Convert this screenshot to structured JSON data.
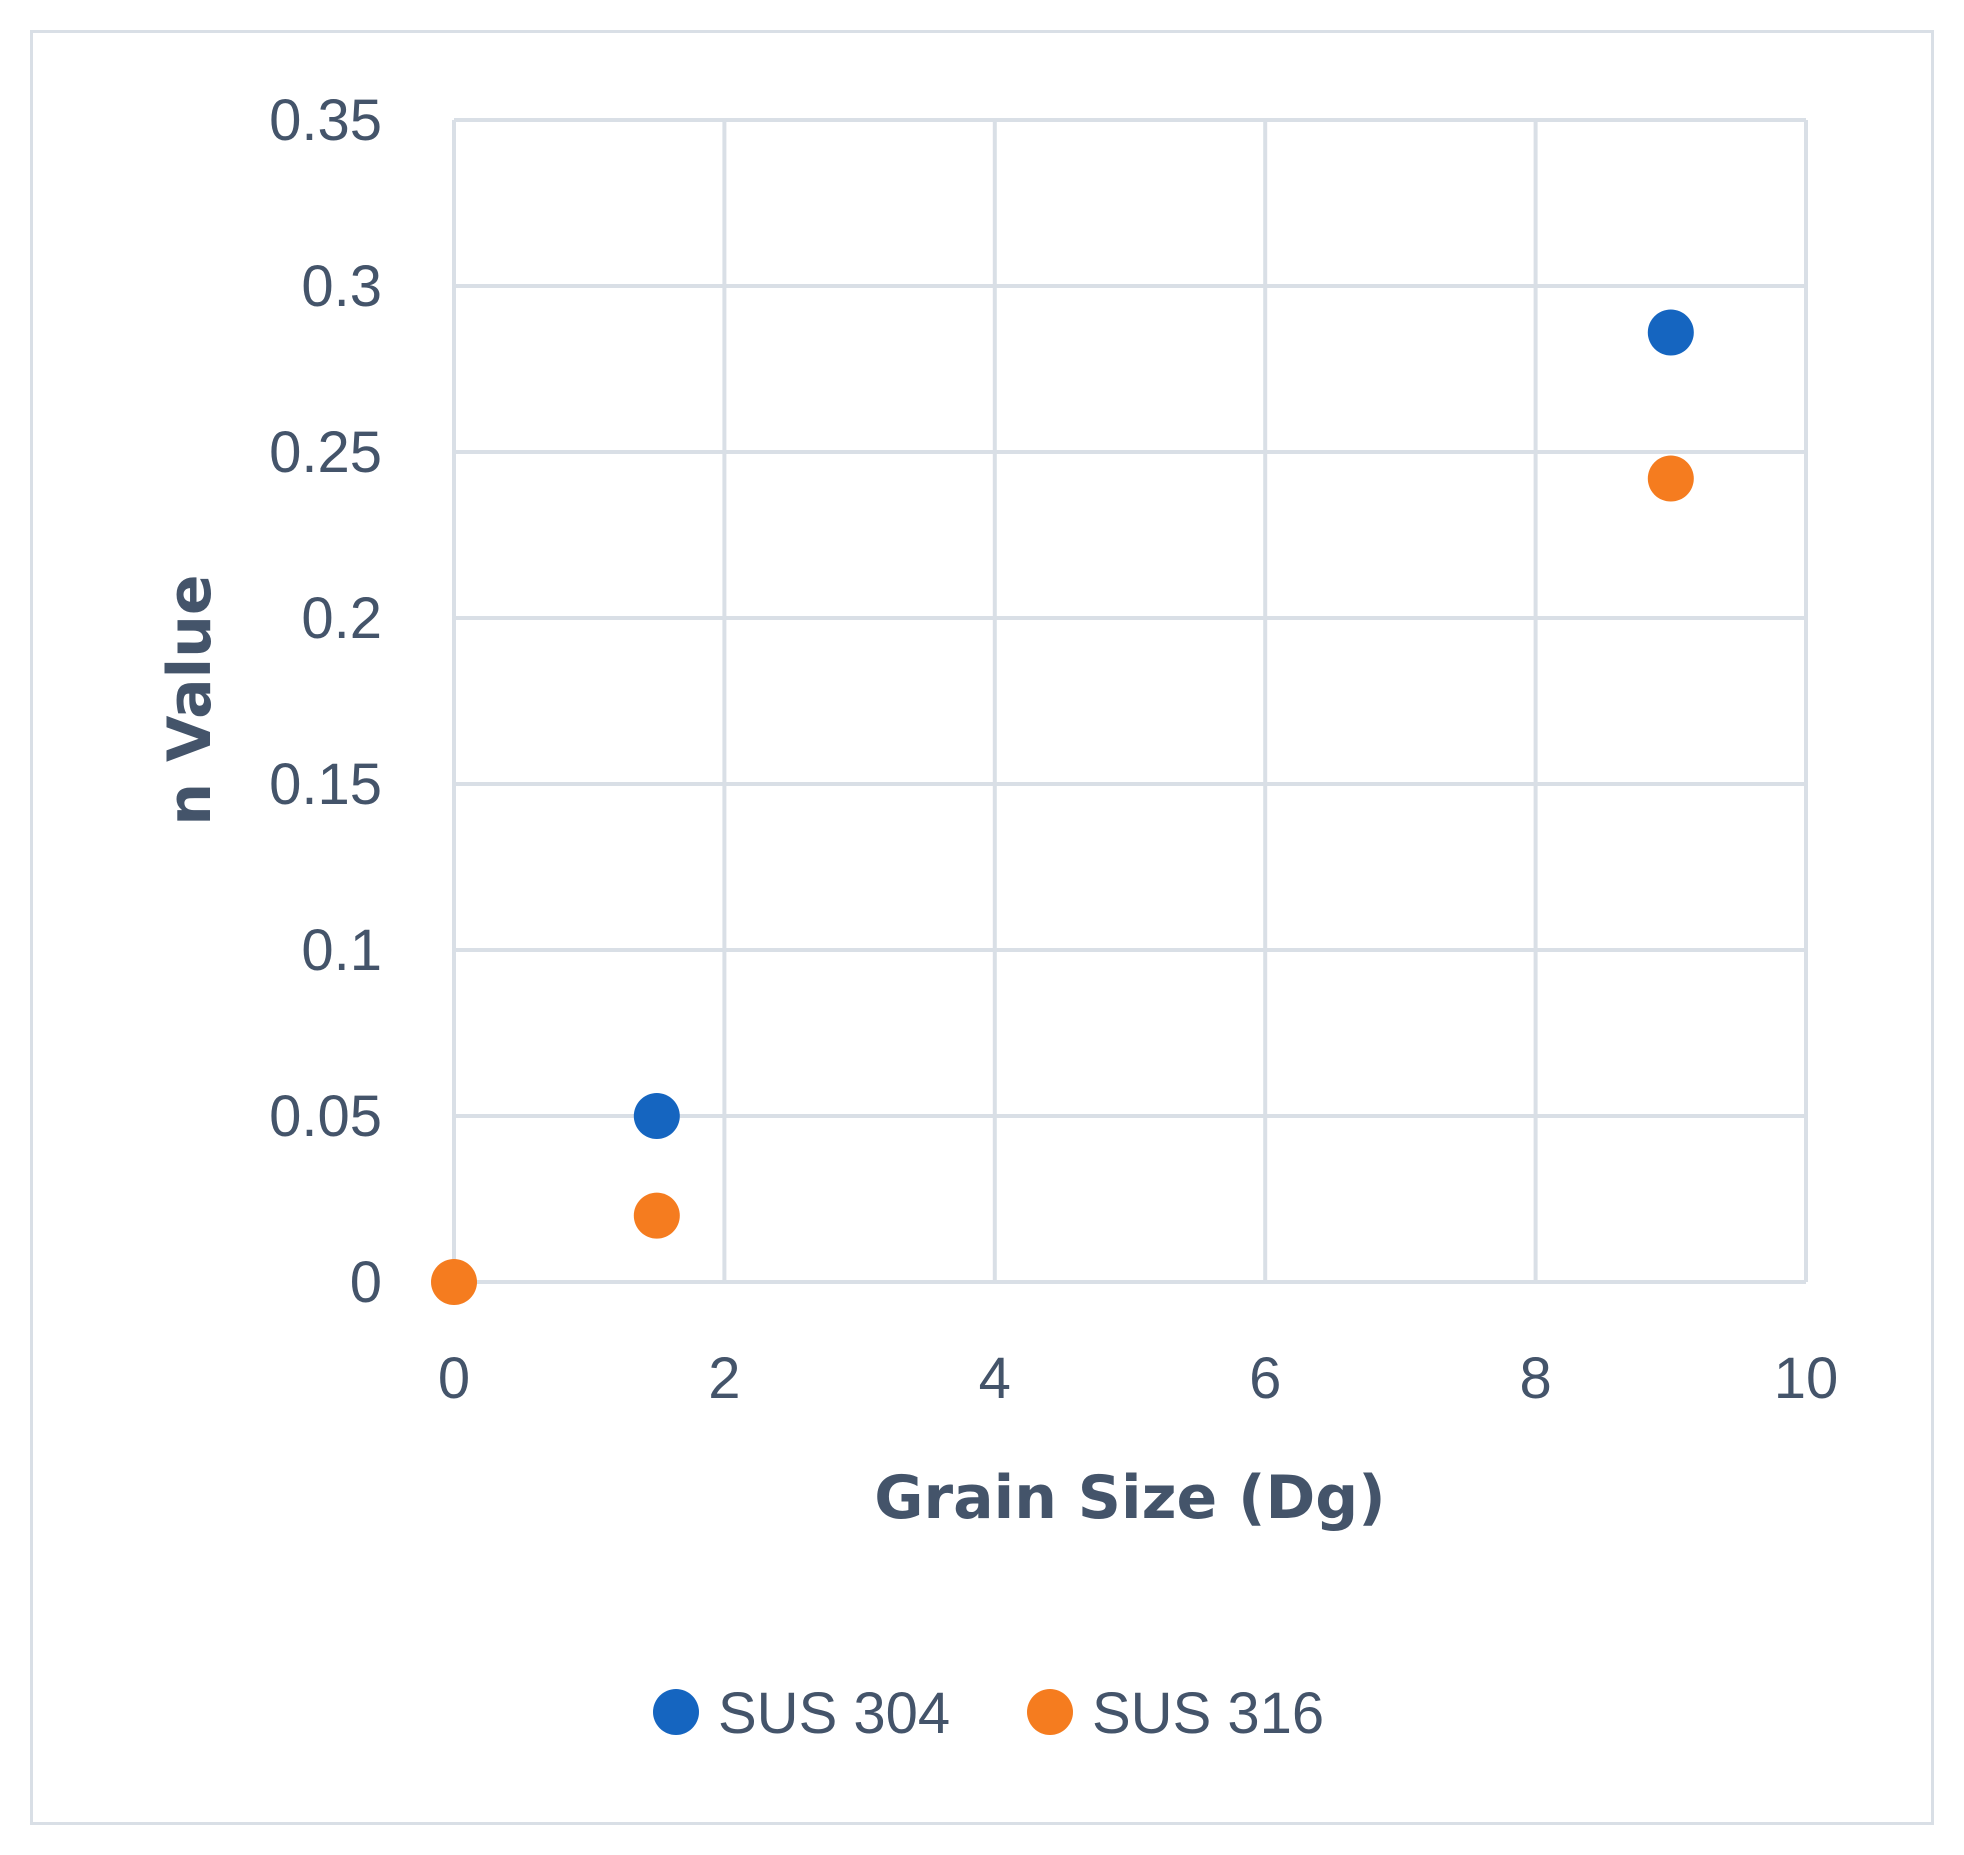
{
  "chart_data": {
    "type": "scatter",
    "xlabel": "Grain Size (Dg)",
    "ylabel": "n Value",
    "xlim": [
      0,
      10
    ],
    "ylim": [
      0,
      0.35
    ],
    "x_ticks": [
      "0",
      "2",
      "4",
      "6",
      "8",
      "10"
    ],
    "y_ticks": [
      "0",
      "0.05",
      "0.1",
      "0.15",
      "0.2",
      "0.25",
      "0.3",
      "0.35"
    ],
    "grid": true,
    "legend_position": "bottom",
    "series": [
      {
        "name": "SUS 304",
        "color": "#1565c0",
        "points": [
          {
            "x": 1.5,
            "y": 0.05
          },
          {
            "x": 9.0,
            "y": 0.286
          }
        ]
      },
      {
        "name": "SUS 316",
        "color": "#f57c1f",
        "points": [
          {
            "x": 0.0,
            "y": 0.0
          },
          {
            "x": 1.5,
            "y": 0.02
          },
          {
            "x": 9.0,
            "y": 0.242
          }
        ]
      }
    ]
  }
}
